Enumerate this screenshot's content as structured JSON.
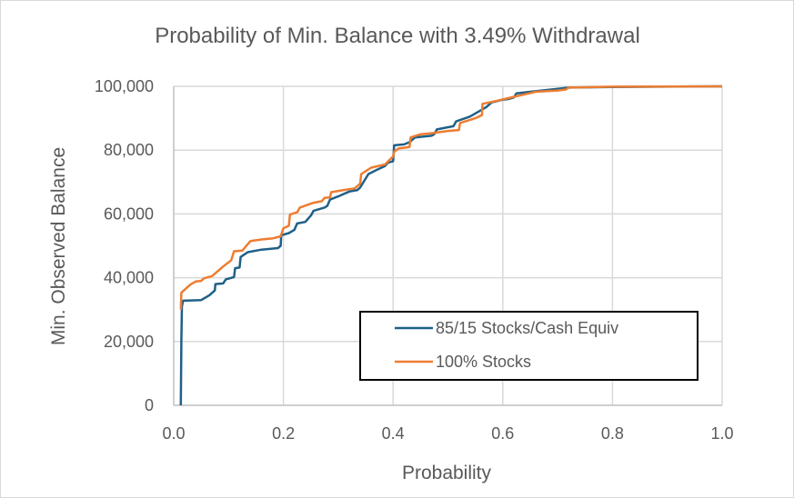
{
  "chart_data": {
    "type": "line",
    "title": "Probability of Min. Balance with 3.49% Withdrawal",
    "xlabel": "Probability",
    "ylabel": "Min. Observed Balance",
    "xlim": [
      0.0,
      1.0
    ],
    "ylim": [
      0,
      100000
    ],
    "x_ticks": [
      "0.0",
      "0.2",
      "0.4",
      "0.6",
      "0.8",
      "1.0"
    ],
    "x_tick_values": [
      0.0,
      0.2,
      0.4,
      0.6,
      0.8,
      1.0
    ],
    "y_ticks": [
      "0",
      "20,000",
      "40,000",
      "60,000",
      "80,000",
      "100,000"
    ],
    "y_tick_values": [
      0,
      20000,
      40000,
      60000,
      80000,
      100000
    ],
    "grid": true,
    "legend_position": "bottom-right",
    "series": [
      {
        "name": "85/15 Stocks/Cash Equiv",
        "color": "#1f6087",
        "points": [
          [
            0.013,
            0
          ],
          [
            0.014,
            20000
          ],
          [
            0.015,
            31000
          ],
          [
            0.017,
            32800
          ],
          [
            0.05,
            33000
          ],
          [
            0.065,
            34500
          ],
          [
            0.075,
            36000
          ],
          [
            0.076,
            38000
          ],
          [
            0.09,
            38200
          ],
          [
            0.095,
            39500
          ],
          [
            0.11,
            40200
          ],
          [
            0.112,
            43000
          ],
          [
            0.12,
            43200
          ],
          [
            0.122,
            46500
          ],
          [
            0.135,
            48000
          ],
          [
            0.16,
            48800
          ],
          [
            0.19,
            49300
          ],
          [
            0.195,
            50000
          ],
          [
            0.196,
            53300
          ],
          [
            0.21,
            54000
          ],
          [
            0.22,
            55000
          ],
          [
            0.225,
            57000
          ],
          [
            0.24,
            57500
          ],
          [
            0.25,
            59500
          ],
          [
            0.255,
            61000
          ],
          [
            0.275,
            62000
          ],
          [
            0.28,
            62500
          ],
          [
            0.285,
            64500
          ],
          [
            0.3,
            65500
          ],
          [
            0.32,
            67000
          ],
          [
            0.335,
            67500
          ],
          [
            0.34,
            68300
          ],
          [
            0.355,
            72500
          ],
          [
            0.37,
            73800
          ],
          [
            0.385,
            75000
          ],
          [
            0.39,
            76000
          ],
          [
            0.395,
            76300
          ],
          [
            0.4,
            76500
          ],
          [
            0.402,
            81500
          ],
          [
            0.42,
            81800
          ],
          [
            0.43,
            82500
          ],
          [
            0.44,
            84000
          ],
          [
            0.47,
            84500
          ],
          [
            0.475,
            85000
          ],
          [
            0.48,
            86500
          ],
          [
            0.51,
            87500
          ],
          [
            0.515,
            89000
          ],
          [
            0.54,
            90500
          ],
          [
            0.55,
            91500
          ],
          [
            0.57,
            93500
          ],
          [
            0.58,
            95000
          ],
          [
            0.6,
            95800
          ],
          [
            0.61,
            96000
          ],
          [
            0.62,
            96500
          ],
          [
            0.625,
            97800
          ],
          [
            0.65,
            98300
          ],
          [
            0.7,
            99200
          ],
          [
            0.72,
            99600
          ],
          [
            0.8,
            99800
          ],
          [
            1.0,
            100000
          ]
        ]
      },
      {
        "name": "100% Stocks",
        "color": "#ed7d31",
        "points": [
          [
            0.013,
            30000
          ],
          [
            0.014,
            35300
          ],
          [
            0.03,
            37800
          ],
          [
            0.04,
            38800
          ],
          [
            0.05,
            39000
          ],
          [
            0.055,
            39800
          ],
          [
            0.07,
            40500
          ],
          [
            0.09,
            43500
          ],
          [
            0.105,
            45500
          ],
          [
            0.11,
            48300
          ],
          [
            0.125,
            48500
          ],
          [
            0.14,
            51500
          ],
          [
            0.16,
            52000
          ],
          [
            0.18,
            52300
          ],
          [
            0.195,
            53000
          ],
          [
            0.2,
            55500
          ],
          [
            0.21,
            56300
          ],
          [
            0.212,
            59800
          ],
          [
            0.225,
            60500
          ],
          [
            0.23,
            62000
          ],
          [
            0.255,
            63500
          ],
          [
            0.27,
            64000
          ],
          [
            0.275,
            65000
          ],
          [
            0.285,
            65200
          ],
          [
            0.287,
            66800
          ],
          [
            0.31,
            67500
          ],
          [
            0.33,
            68000
          ],
          [
            0.34,
            69500
          ],
          [
            0.342,
            72500
          ],
          [
            0.36,
            74500
          ],
          [
            0.385,
            75500
          ],
          [
            0.4,
            78000
          ],
          [
            0.402,
            79500
          ],
          [
            0.41,
            80500
          ],
          [
            0.43,
            81000
          ],
          [
            0.432,
            84000
          ],
          [
            0.45,
            85000
          ],
          [
            0.47,
            85300
          ],
          [
            0.5,
            86000
          ],
          [
            0.52,
            86300
          ],
          [
            0.522,
            88500
          ],
          [
            0.55,
            90000
          ],
          [
            0.562,
            91000
          ],
          [
            0.563,
            94500
          ],
          [
            0.59,
            95500
          ],
          [
            0.61,
            96300
          ],
          [
            0.64,
            97500
          ],
          [
            0.66,
            98300
          ],
          [
            0.7,
            98700
          ],
          [
            0.715,
            99000
          ],
          [
            0.72,
            99600
          ],
          [
            0.8,
            99900
          ],
          [
            1.0,
            100000
          ]
        ]
      }
    ]
  }
}
